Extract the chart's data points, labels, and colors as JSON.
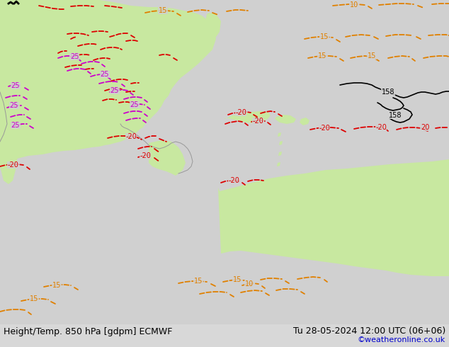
{
  "title_left": "Height/Temp. 850 hPa [gdpm] ECMWF",
  "title_right": "Tu 28-05-2024 12:00 UTC (06+06)",
  "credit": "©weatheronline.co.uk",
  "bg_color": "#d0d0d0",
  "map_bg": "#d0d0d0",
  "land_green": "#c8e8a0",
  "land_gray": "#aaaaaa",
  "fig_width": 6.34,
  "fig_height": 4.9,
  "bottom_text_color": "#000000",
  "credit_color": "#0000cc",
  "rcolor": "#dd0000",
  "ocolor": "#e08000",
  "mcolor": "#cc00cc",
  "bcolor": "#000000",
  "bottom_bar_color": "#d8d8d8",
  "font_size_title": 9,
  "font_size_credit": 8
}
